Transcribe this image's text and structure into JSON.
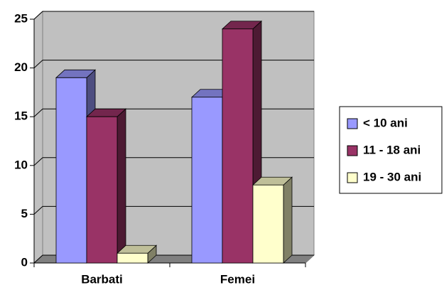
{
  "chart_data": {
    "type": "bar3d",
    "categories": [
      "Barbati",
      "Femei"
    ],
    "series": [
      {
        "name": "< 10 ani",
        "color": "#9999ff",
        "values": [
          19,
          17
        ]
      },
      {
        "name": "11 - 18 ani",
        "color": "#993366",
        "values": [
          15,
          24
        ]
      },
      {
        "name": "19 - 30 ani",
        "color": "#ffffcc",
        "values": [
          1,
          8
        ]
      }
    ],
    "ylim": [
      0,
      25
    ],
    "yticks": [
      0,
      5,
      10,
      15,
      20,
      25
    ],
    "grid": true,
    "legend": "right"
  }
}
